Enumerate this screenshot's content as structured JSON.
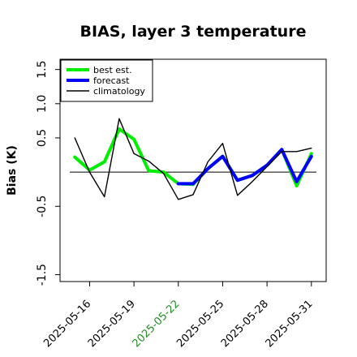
{
  "chart_data": {
    "type": "line",
    "title": "BIAS, layer 3 temperature",
    "xlabel": "",
    "ylabel": "Bias (K)",
    "ylim": [
      -1.6,
      1.65
    ],
    "xlim": [
      "2025-05-14",
      "2025-06-01"
    ],
    "grid": false,
    "legend": "top-left",
    "reference_line": 0,
    "x": [
      "2025-05-15",
      "2025-05-16",
      "2025-05-17",
      "2025-05-18",
      "2025-05-19",
      "2025-05-20",
      "2025-05-21",
      "2025-05-22",
      "2025-05-23",
      "2025-05-24",
      "2025-05-25",
      "2025-05-26",
      "2025-05-27",
      "2025-05-28",
      "2025-05-29",
      "2025-05-30",
      "2025-05-31"
    ],
    "x_ticks": [
      "2025-05-16",
      "2025-05-19",
      "2025-05-22",
      "2025-05-25",
      "2025-05-28",
      "2025-05-31"
    ],
    "x_tick_colors": [
      "#000000",
      "#000000",
      "#228b22",
      "#000000",
      "#000000",
      "#000000"
    ],
    "y_ticks": [
      -1.5,
      -0.5,
      0.5,
      1.0,
      1.5
    ],
    "y_tick_labels": [
      "-1.5",
      "-0.5",
      "0.5",
      "1.0",
      "1.5"
    ],
    "series": [
      {
        "name": "best est.",
        "color": "#00ee00",
        "width": 4,
        "values": [
          0.22,
          0.03,
          0.15,
          0.63,
          0.48,
          0.02,
          0.0,
          -0.17,
          -0.18,
          0.05,
          0.23,
          -0.12,
          -0.05,
          0.1,
          0.33,
          -0.2,
          0.27
        ]
      },
      {
        "name": "forecast",
        "color": "#0000ff",
        "width": 4,
        "values": [
          null,
          null,
          null,
          null,
          null,
          null,
          null,
          -0.17,
          -0.17,
          0.05,
          0.23,
          -0.12,
          -0.05,
          0.1,
          0.33,
          -0.14,
          0.23
        ]
      },
      {
        "name": "climatology",
        "color": "#000000",
        "width": 1.4,
        "values": [
          0.5,
          0.0,
          -0.36,
          0.78,
          0.27,
          0.16,
          -0.02,
          -0.4,
          -0.33,
          0.15,
          0.42,
          -0.34,
          -0.14,
          0.08,
          0.3,
          0.3,
          0.35
        ]
      }
    ]
  }
}
